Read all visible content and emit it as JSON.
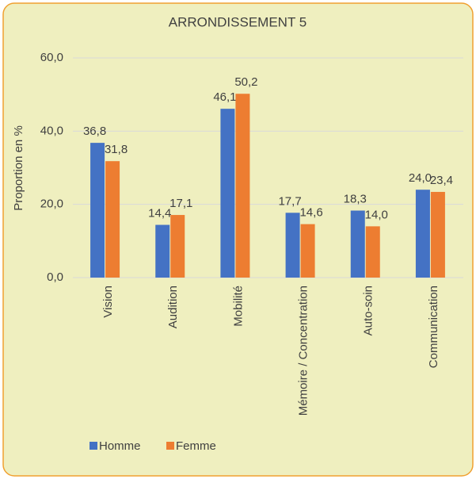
{
  "chart_data": {
    "type": "bar",
    "title": "ARRONDISSEMENT 5",
    "y_label": "Proportion en %",
    "categories": [
      "Vision",
      "Audition",
      "Mobilité",
      "Mémoire / Concentration",
      "Auto-soin",
      "Communication"
    ],
    "series": [
      {
        "name": "Homme",
        "color": "#4472c4",
        "values": [
          36.8,
          14.4,
          46.1,
          17.7,
          18.3,
          24.0
        ],
        "value_labels": [
          "36,8",
          "14,4",
          "46,1",
          "17,7",
          "18,3",
          "24,0"
        ]
      },
      {
        "name": "Femme",
        "color": "#ed7d31",
        "values": [
          31.8,
          17.1,
          50.2,
          14.6,
          14.0,
          23.4
        ],
        "value_labels": [
          "31,8",
          "17,1",
          "50,2",
          "14,6",
          "14,0",
          "23,4"
        ]
      }
    ],
    "ylim": [
      0,
      60
    ],
    "yticks": [
      {
        "value": 0,
        "label": "0,0"
      },
      {
        "value": 20,
        "label": "20,0"
      },
      {
        "value": 40,
        "label": "40,0"
      },
      {
        "value": 60,
        "label": "60,0"
      }
    ],
    "grid": true,
    "legend": "bottom-left"
  }
}
